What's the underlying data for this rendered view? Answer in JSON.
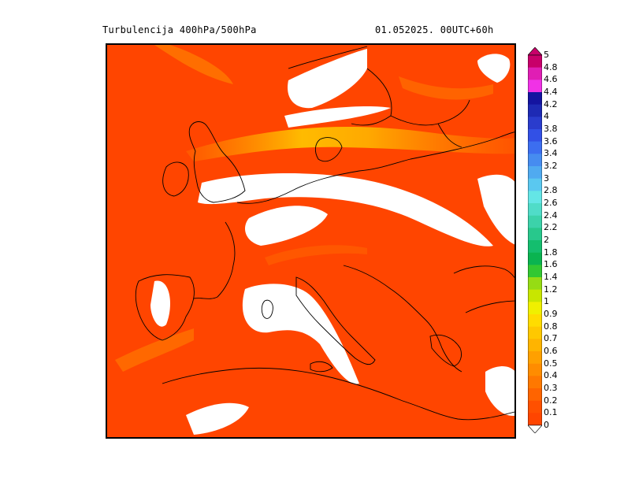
{
  "title": {
    "left": "Turbulencija 400hPa/500hPa",
    "right": "01.052025.   00UTC+60h"
  },
  "map": {
    "field": "turbulence index",
    "background_color": "#ff4500",
    "no_data_color": "#ffffff",
    "coastline_color": "#000000"
  },
  "colorbar": {
    "labels": [
      "5",
      "4.8",
      "4.6",
      "4.4",
      "4.2",
      "4",
      "3.8",
      "3.6",
      "3.4",
      "3.2",
      "3",
      "2.8",
      "2.6",
      "2.4",
      "2.2",
      "2",
      "1.8",
      "1.6",
      "1.4",
      "1.2",
      "1",
      "0.9",
      "0.8",
      "0.7",
      "0.6",
      "0.5",
      "0.4",
      "0.3",
      "0.2",
      "0.1",
      "0"
    ],
    "colors": [
      "#c8006a",
      "#e01eb4",
      "#f032e6",
      "#1414a0",
      "#1e2ab4",
      "#2a3ccd",
      "#3250e6",
      "#3c6ef0",
      "#468cf0",
      "#50aaf0",
      "#5ac8f0",
      "#64e6e6",
      "#50dcc8",
      "#3cd2aa",
      "#28c88c",
      "#14be6e",
      "#0ab450",
      "#32c832",
      "#96dc14",
      "#c8e600",
      "#f0f000",
      "#ffdc00",
      "#ffc800",
      "#ffb400",
      "#ffa000",
      "#ff8c00",
      "#ff7800",
      "#ff6400",
      "#ff5000",
      "#ff4500"
    ]
  }
}
